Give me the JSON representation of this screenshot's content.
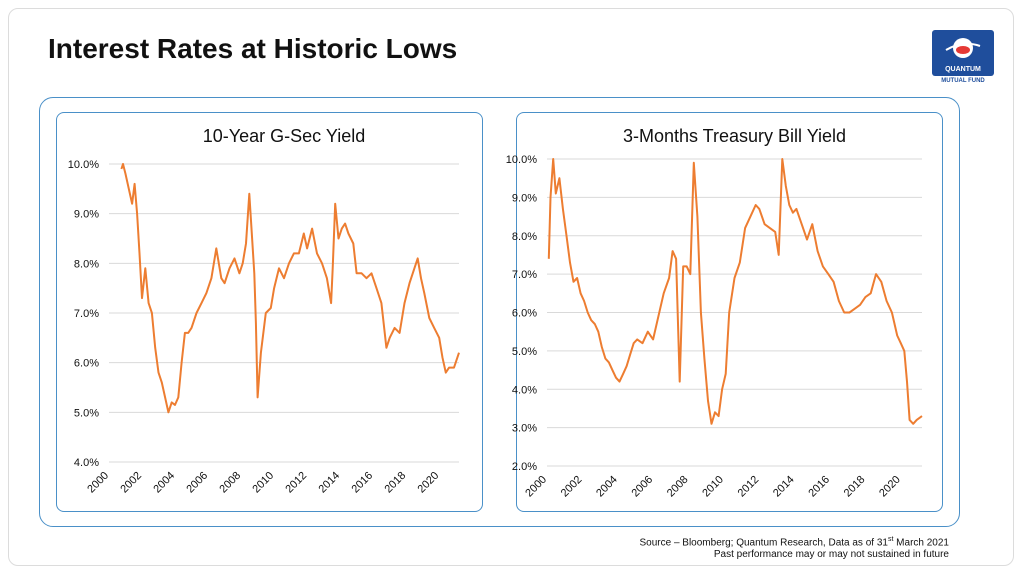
{
  "page": {
    "title": "Interest Rates at Historic Lows",
    "source_prefix": "Source – Bloomberg; Quantum Research, Data as of 31",
    "source_sup": "st",
    "source_suffix": " March 2021",
    "disclaimer": "Past performance may or may not sustained in future",
    "logo_text": "QUANTUM",
    "logo_subtext": "MUTUAL FUND"
  },
  "colors": {
    "line": "#ed7d31",
    "grid": "#d9d9d9",
    "border": "#4a90c8",
    "logo": "#1f4e9c"
  },
  "chart_data": [
    {
      "type": "line",
      "title": "10-Year  G-Sec Yield",
      "xlabel": "",
      "ylabel": "",
      "xlim": [
        2000,
        2021.2
      ],
      "ylim": [
        4.0,
        10.0
      ],
      "y_ticks": [
        4.0,
        5.0,
        6.0,
        7.0,
        8.0,
        9.0,
        10.0
      ],
      "y_tick_labels": [
        "4.0%",
        "5.0%",
        "6.0%",
        "7.0%",
        "8.0%",
        "9.0%",
        "10.0%"
      ],
      "x_ticks": [
        2000,
        2002,
        2004,
        2006,
        2008,
        2010,
        2012,
        2014,
        2016,
        2018,
        2020
      ],
      "x_tick_labels": [
        "2000",
        "2002",
        "2004",
        "2006",
        "2008",
        "2010",
        "2012",
        "2014",
        "2016",
        "2018",
        "2020"
      ],
      "grid": true,
      "series": [
        {
          "x": [
            2000.75,
            2000.85,
            2001.0,
            2001.2,
            2001.4,
            2001.55,
            2001.7,
            2001.85,
            2002.0,
            2002.2,
            2002.4,
            2002.6,
            2002.8,
            2003.0,
            2003.2,
            2003.4,
            2003.6,
            2003.8,
            2004.0,
            2004.2,
            2004.4,
            2004.6,
            2004.8,
            2005.0,
            2005.3,
            2005.6,
            2005.9,
            2006.2,
            2006.5,
            2006.8,
            2007.0,
            2007.3,
            2007.6,
            2007.9,
            2008.1,
            2008.3,
            2008.5,
            2008.65,
            2008.8,
            2008.9,
            2009.0,
            2009.2,
            2009.5,
            2009.8,
            2010.0,
            2010.3,
            2010.6,
            2010.9,
            2011.2,
            2011.5,
            2011.8,
            2012.0,
            2012.3,
            2012.6,
            2012.9,
            2013.2,
            2013.45,
            2013.55,
            2013.7,
            2013.9,
            2014.1,
            2014.3,
            2014.5,
            2014.8,
            2015.0,
            2015.3,
            2015.6,
            2015.9,
            2016.2,
            2016.5,
            2016.8,
            2017.0,
            2017.3,
            2017.6,
            2017.9,
            2018.2,
            2018.5,
            2018.7,
            2018.9,
            2019.1,
            2019.4,
            2019.7,
            2020.0,
            2020.2,
            2020.4,
            2020.6,
            2020.9,
            2021.2
          ],
          "y": [
            9.9,
            10.0,
            9.8,
            9.5,
            9.2,
            9.6,
            9.0,
            8.2,
            7.3,
            7.9,
            7.2,
            7.0,
            6.3,
            5.8,
            5.6,
            5.3,
            5.0,
            5.2,
            5.15,
            5.3,
            6.0,
            6.6,
            6.6,
            6.7,
            7.0,
            7.2,
            7.4,
            7.7,
            8.3,
            7.7,
            7.6,
            7.9,
            8.1,
            7.8,
            8.0,
            8.4,
            9.4,
            8.6,
            7.8,
            6.8,
            5.3,
            6.2,
            7.0,
            7.1,
            7.5,
            7.9,
            7.7,
            8.0,
            8.2,
            8.2,
            8.6,
            8.3,
            8.7,
            8.2,
            8.0,
            7.7,
            7.2,
            7.9,
            9.2,
            8.5,
            8.7,
            8.8,
            8.6,
            8.4,
            7.8,
            7.8,
            7.7,
            7.8,
            7.5,
            7.2,
            6.3,
            6.5,
            6.7,
            6.6,
            7.2,
            7.6,
            7.9,
            8.1,
            7.7,
            7.4,
            6.9,
            6.7,
            6.5,
            6.1,
            5.8,
            5.9,
            5.9,
            6.2
          ]
        }
      ]
    },
    {
      "type": "line",
      "title": "3-Months Treasury Bill Yield",
      "xlabel": "",
      "ylabel": "",
      "xlim": [
        2000,
        2021.2
      ],
      "ylim": [
        2.0,
        10.0
      ],
      "y_ticks": [
        2.0,
        3.0,
        4.0,
        5.0,
        6.0,
        7.0,
        8.0,
        9.0,
        10.0
      ],
      "y_tick_labels": [
        "2.0%",
        "3.0%",
        "4.0%",
        "5.0%",
        "6.0%",
        "7.0%",
        "8.0%",
        "9.0%",
        "10.0%"
      ],
      "x_ticks": [
        2000,
        2002,
        2004,
        2006,
        2008,
        2010,
        2012,
        2014,
        2016,
        2018,
        2020
      ],
      "x_tick_labels": [
        "2000",
        "2002",
        "2004",
        "2006",
        "2008",
        "2010",
        "2012",
        "2014",
        "2016",
        "2018",
        "2020"
      ],
      "grid": true,
      "series": [
        {
          "x": [
            2000.1,
            2000.2,
            2000.35,
            2000.5,
            2000.7,
            2000.9,
            2001.1,
            2001.3,
            2001.5,
            2001.7,
            2001.9,
            2002.1,
            2002.3,
            2002.5,
            2002.7,
            2002.9,
            2003.1,
            2003.3,
            2003.5,
            2003.7,
            2003.9,
            2004.1,
            2004.3,
            2004.5,
            2004.7,
            2004.9,
            2005.1,
            2005.4,
            2005.7,
            2006.0,
            2006.3,
            2006.6,
            2006.9,
            2007.1,
            2007.3,
            2007.5,
            2007.7,
            2007.9,
            2008.1,
            2008.3,
            2008.5,
            2008.7,
            2008.9,
            2009.1,
            2009.3,
            2009.5,
            2009.7,
            2009.9,
            2010.1,
            2010.3,
            2010.6,
            2010.9,
            2011.2,
            2011.5,
            2011.8,
            2012.0,
            2012.3,
            2012.6,
            2012.9,
            2013.1,
            2013.3,
            2013.5,
            2013.7,
            2013.9,
            2014.1,
            2014.4,
            2014.7,
            2015.0,
            2015.3,
            2015.6,
            2015.9,
            2016.2,
            2016.5,
            2016.8,
            2017.1,
            2017.4,
            2017.7,
            2018.0,
            2018.3,
            2018.6,
            2018.9,
            2019.2,
            2019.5,
            2019.8,
            2020.0,
            2020.2,
            2020.35,
            2020.5,
            2020.7,
            2020.9,
            2021.2
          ],
          "y": [
            7.4,
            9.0,
            10.0,
            9.1,
            9.5,
            8.7,
            8.0,
            7.3,
            6.8,
            6.9,
            6.5,
            6.3,
            6.0,
            5.8,
            5.7,
            5.5,
            5.1,
            4.8,
            4.7,
            4.5,
            4.3,
            4.2,
            4.4,
            4.6,
            4.9,
            5.2,
            5.3,
            5.2,
            5.5,
            5.3,
            5.9,
            6.5,
            6.9,
            7.6,
            7.4,
            4.2,
            7.2,
            7.2,
            7.0,
            9.9,
            8.5,
            6.0,
            4.8,
            3.7,
            3.1,
            3.4,
            3.3,
            4.0,
            4.4,
            6.0,
            6.9,
            7.3,
            8.2,
            8.5,
            8.8,
            8.7,
            8.3,
            8.2,
            8.1,
            7.5,
            10.0,
            9.3,
            8.8,
            8.6,
            8.7,
            8.3,
            7.9,
            8.3,
            7.6,
            7.2,
            7.0,
            6.8,
            6.3,
            6.0,
            6.0,
            6.1,
            6.2,
            6.4,
            6.5,
            7.0,
            6.8,
            6.3,
            6.0,
            5.4,
            5.2,
            5.0,
            4.2,
            3.2,
            3.1,
            3.2,
            3.3
          ]
        }
      ]
    }
  ]
}
